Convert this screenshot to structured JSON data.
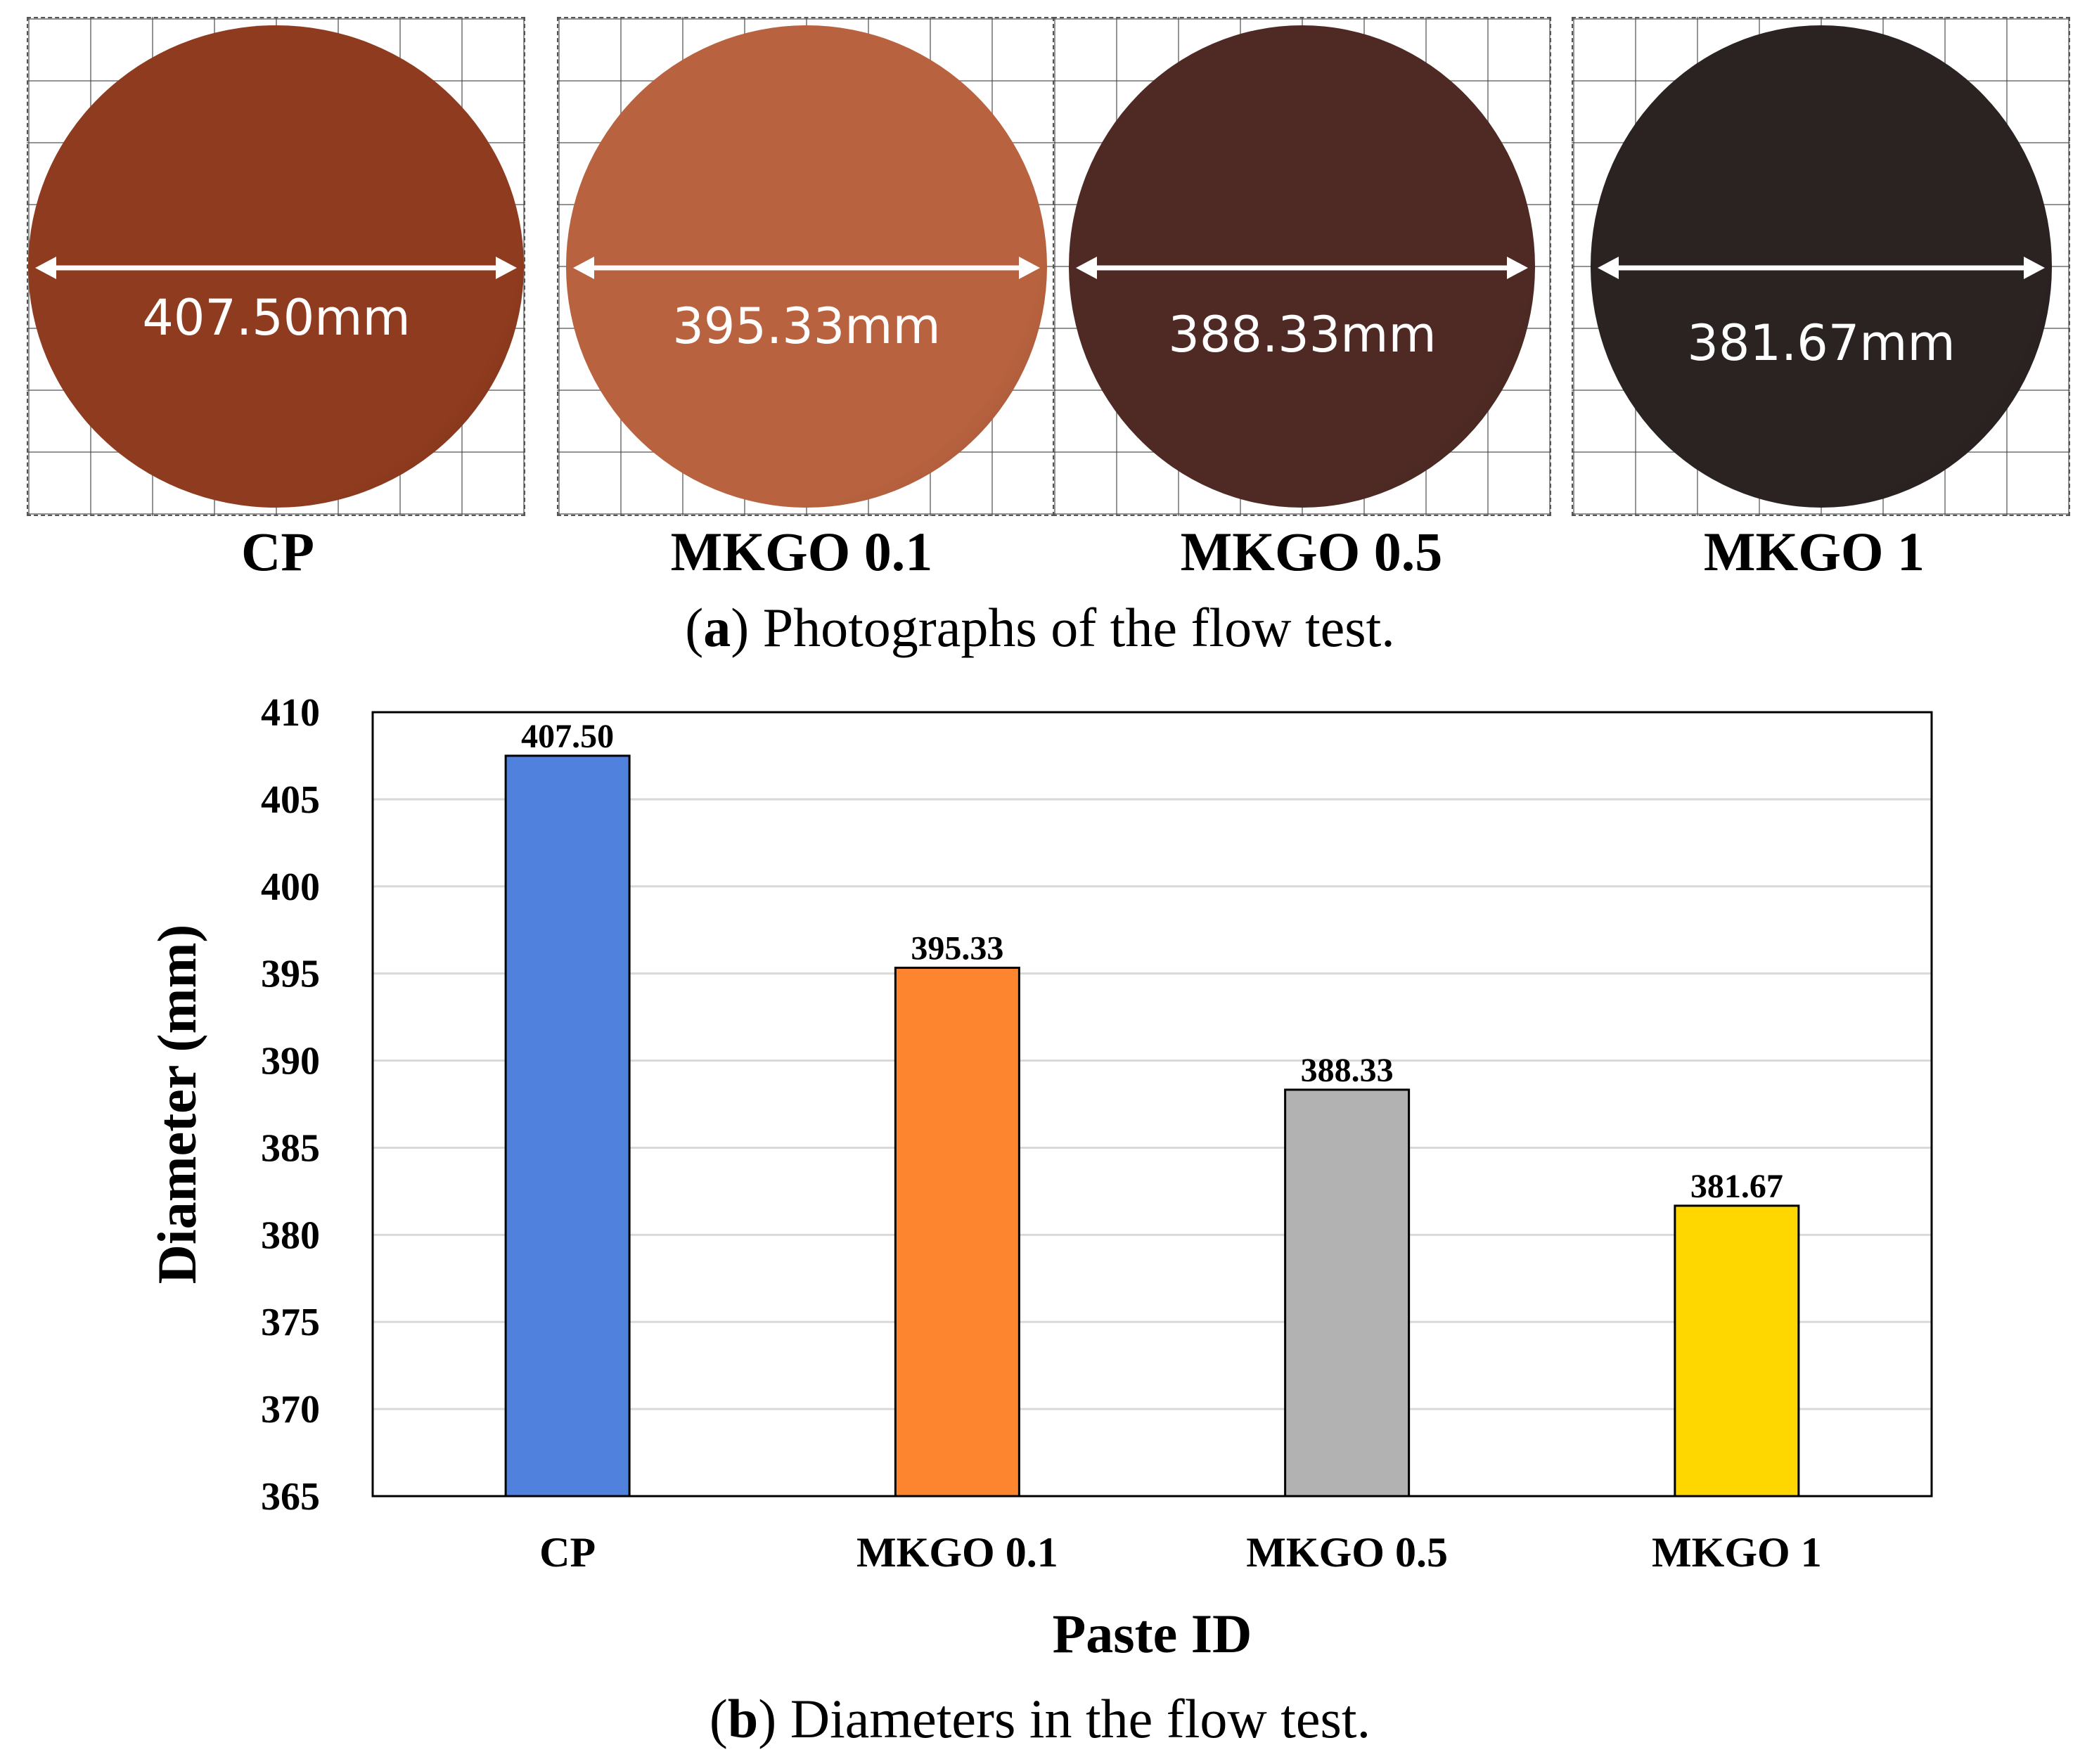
{
  "photos": {
    "items": [
      {
        "label": "CP",
        "measurement": "407.50mm",
        "color": "#8f3b1f"
      },
      {
        "label": "MKGO 0.1",
        "measurement": "395.33mm",
        "color": "#b8623f"
      },
      {
        "label": "MKGO 0.5",
        "measurement": "388.33mm",
        "color": "#4f2a24"
      },
      {
        "label": "MKGO 1",
        "measurement": "381.67mm",
        "color": "#2b2322"
      }
    ],
    "caption_letter": "a",
    "caption_text": "Photographs of the flow test."
  },
  "chart_data": {
    "type": "bar",
    "categories": [
      "CP",
      "MKGO 0.1",
      "MKGO 0.5",
      "MKGO 1"
    ],
    "values": [
      407.5,
      395.33,
      388.33,
      381.67
    ],
    "value_labels": [
      "407.50",
      "395.33",
      "388.33",
      "381.67"
    ],
    "colors": [
      "#4f81dd",
      "#fd8530",
      "#b2b2b2",
      "#ffd700"
    ],
    "xlabel": "Paste ID",
    "ylabel": "Diameter (mm)",
    "ylim": [
      365,
      410
    ],
    "yticks": [
      365,
      370,
      375,
      380,
      385,
      390,
      395,
      400,
      405,
      410
    ],
    "grid": true
  },
  "chart_caption": {
    "letter": "b",
    "text": "Diameters in the flow test."
  }
}
